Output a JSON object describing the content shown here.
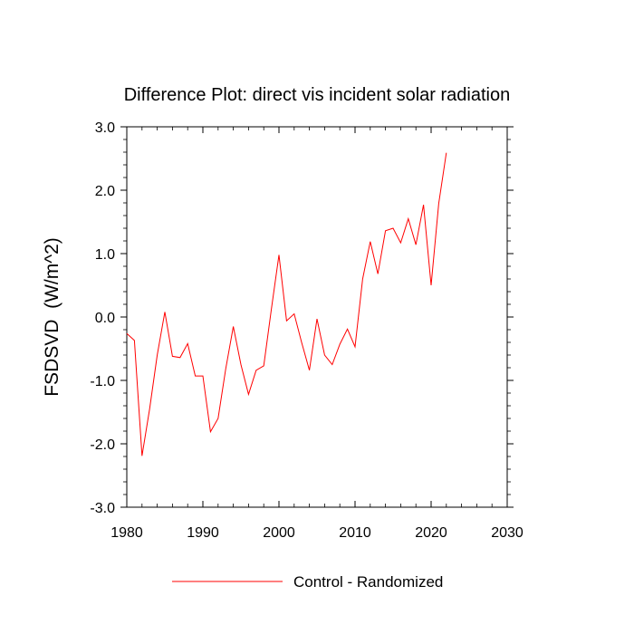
{
  "chart_data": {
    "type": "line",
    "title": "Difference Plot: direct vis incident solar radiation",
    "xlabel": "",
    "ylabel": "FSDSVD  (W/m^2)",
    "xlim": [
      1980,
      2030
    ],
    "ylim": [
      -3.0,
      3.0
    ],
    "xticks": [
      1980,
      1990,
      2000,
      2010,
      2020,
      2030
    ],
    "xtick_labels": [
      "1980",
      "1990",
      "2000",
      "2010",
      "2020",
      "2030"
    ],
    "yticks": [
      -3.0,
      -2.0,
      -1.0,
      0.0,
      1.0,
      2.0,
      3.0
    ],
    "ytick_labels": [
      "-3.0",
      "-2.0",
      "-1.0",
      "0.0",
      "1.0",
      "2.0",
      "3.0"
    ],
    "grid": false,
    "legend_position": "bottom-center",
    "series": [
      {
        "name": "Control - Randomized",
        "color": "#ff0000",
        "x": [
          1980,
          1981,
          1982,
          1983,
          1984,
          1985,
          1986,
          1987,
          1988,
          1989,
          1990,
          1991,
          1992,
          1993,
          1994,
          1995,
          1996,
          1997,
          1998,
          1999,
          2000,
          2001,
          2002,
          2003,
          2004,
          2005,
          2006,
          2007,
          2008,
          2009,
          2010,
          2011,
          2012,
          2013,
          2014,
          2015,
          2016,
          2017,
          2018,
          2019,
          2020,
          2021,
          2022
        ],
        "values": [
          -0.26,
          -0.37,
          -2.19,
          -1.45,
          -0.6,
          0.08,
          -0.62,
          -0.64,
          -0.42,
          -0.93,
          -0.93,
          -1.81,
          -1.6,
          -0.82,
          -0.15,
          -0.75,
          -1.22,
          -0.84,
          -0.77,
          0.12,
          0.98,
          -0.06,
          0.05,
          -0.41,
          -0.84,
          -0.03,
          -0.6,
          -0.75,
          -0.43,
          -0.19,
          -0.47,
          0.6,
          1.19,
          0.68,
          1.36,
          1.4,
          1.17,
          1.55,
          1.14,
          1.77,
          0.5,
          1.79,
          2.59
        ]
      }
    ]
  }
}
